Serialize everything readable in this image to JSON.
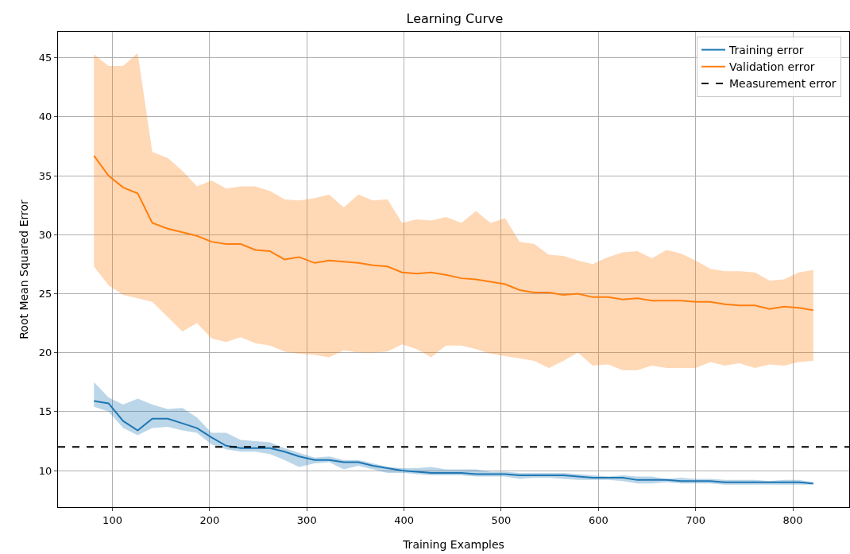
{
  "chart_data": {
    "type": "line",
    "title": "Learning Curve",
    "xlabel": "Training Examples",
    "ylabel": "Root Mean Squared Error",
    "x": [
      81,
      96,
      111,
      126,
      141,
      157,
      172,
      187,
      202,
      217,
      232,
      247,
      262,
      277,
      292,
      308,
      323,
      338,
      353,
      368,
      383,
      398,
      413,
      428,
      443,
      459,
      474,
      489,
      504,
      519,
      534,
      549,
      564,
      579,
      594,
      610,
      625,
      640,
      655,
      670,
      685,
      700,
      715,
      730,
      745,
      761,
      776,
      791,
      806,
      821
    ],
    "series": [
      {
        "name": "Training error",
        "color": "#1f77b4",
        "values": [
          15.9,
          15.7,
          14.2,
          13.4,
          14.4,
          14.4,
          14.0,
          13.6,
          12.8,
          12.1,
          11.9,
          11.9,
          11.9,
          11.6,
          11.2,
          10.9,
          10.9,
          10.7,
          10.7,
          10.4,
          10.2,
          10.0,
          9.9,
          9.8,
          9.8,
          9.8,
          9.7,
          9.7,
          9.7,
          9.6,
          9.6,
          9.6,
          9.6,
          9.5,
          9.4,
          9.4,
          9.4,
          9.2,
          9.2,
          9.2,
          9.1,
          9.1,
          9.1,
          9.0,
          9.0,
          9.0,
          9.0,
          9.0,
          9.0,
          8.9
        ],
        "upper": [
          17.5,
          16.2,
          15.6,
          16.1,
          15.6,
          15.2,
          15.3,
          14.5,
          13.2,
          13.2,
          12.6,
          12.5,
          12.4,
          11.9,
          11.5,
          11.1,
          11.2,
          10.9,
          10.9,
          10.6,
          10.3,
          10.2,
          10.2,
          10.3,
          10.1,
          10.1,
          10.1,
          9.9,
          9.9,
          9.8,
          9.8,
          9.8,
          9.8,
          9.7,
          9.6,
          9.5,
          9.6,
          9.5,
          9.5,
          9.3,
          9.4,
          9.3,
          9.3,
          9.2,
          9.2,
          9.2,
          9.1,
          9.2,
          9.2,
          9.0
        ],
        "lower": [
          15.4,
          15.0,
          13.6,
          13.0,
          13.6,
          13.7,
          13.4,
          13.2,
          12.2,
          11.8,
          11.6,
          11.6,
          11.4,
          10.9,
          10.3,
          10.6,
          10.7,
          10.1,
          10.4,
          10.1,
          9.8,
          9.8,
          9.7,
          9.6,
          9.6,
          9.6,
          9.5,
          9.5,
          9.5,
          9.3,
          9.4,
          9.4,
          9.3,
          9.2,
          9.2,
          9.2,
          9.1,
          8.9,
          8.9,
          9.0,
          8.9,
          8.9,
          8.9,
          8.8,
          8.8,
          8.8,
          8.8,
          8.8,
          8.8,
          8.8
        ]
      },
      {
        "name": "Validation error",
        "color": "#ff7f0e",
        "values": [
          36.7,
          35.0,
          34.0,
          33.5,
          31.0,
          30.5,
          30.2,
          29.9,
          29.4,
          29.2,
          29.2,
          28.7,
          28.6,
          27.9,
          28.1,
          27.6,
          27.8,
          27.7,
          27.6,
          27.4,
          27.3,
          26.8,
          26.7,
          26.8,
          26.6,
          26.3,
          26.2,
          26.0,
          25.8,
          25.3,
          25.1,
          25.1,
          24.9,
          25.0,
          24.7,
          24.7,
          24.5,
          24.6,
          24.4,
          24.4,
          24.4,
          24.3,
          24.3,
          24.1,
          24.0,
          24.0,
          23.7,
          23.9,
          23.8,
          23.6
        ],
        "upper": [
          45.3,
          44.3,
          44.3,
          45.4,
          37.0,
          36.5,
          35.4,
          34.1,
          34.6,
          33.9,
          34.1,
          34.1,
          33.7,
          33.0,
          32.9,
          33.1,
          33.4,
          32.3,
          33.4,
          32.9,
          33.0,
          31.0,
          31.3,
          31.2,
          31.5,
          31.0,
          32.0,
          31.0,
          31.4,
          29.4,
          29.2,
          28.3,
          28.2,
          27.8,
          27.5,
          28.1,
          28.5,
          28.6,
          28.0,
          28.7,
          28.4,
          27.8,
          27.1,
          26.9,
          26.9,
          26.8,
          26.1,
          26.2,
          26.8,
          27.0
        ],
        "lower": [
          27.3,
          25.7,
          24.9,
          24.6,
          24.3,
          23.0,
          21.8,
          22.5,
          21.2,
          20.9,
          21.3,
          20.8,
          20.6,
          20.1,
          19.9,
          19.8,
          19.6,
          20.2,
          20.0,
          20.0,
          20.1,
          20.7,
          20.3,
          19.6,
          20.6,
          20.6,
          20.3,
          19.9,
          19.7,
          19.5,
          19.3,
          18.7,
          19.3,
          20.0,
          18.9,
          19.0,
          18.5,
          18.5,
          18.9,
          18.7,
          18.7,
          18.7,
          19.2,
          18.9,
          19.1,
          18.7,
          19.0,
          18.9,
          19.2,
          19.3
        ]
      }
    ],
    "ref_lines": [
      {
        "axis": "y",
        "value": 12,
        "label": "Measurement error",
        "color": "#000000",
        "line_style": "dashed"
      }
    ],
    "xlim": [
      44,
      858
    ],
    "xticks": [
      100,
      200,
      300,
      400,
      500,
      600,
      700,
      800
    ],
    "ylim": [
      6.9,
      47.2
    ],
    "yticks": [
      10,
      15,
      20,
      25,
      30,
      35,
      40,
      45
    ],
    "grid": true,
    "legend": "top right",
    "line_style": "solid",
    "marker": "none"
  }
}
